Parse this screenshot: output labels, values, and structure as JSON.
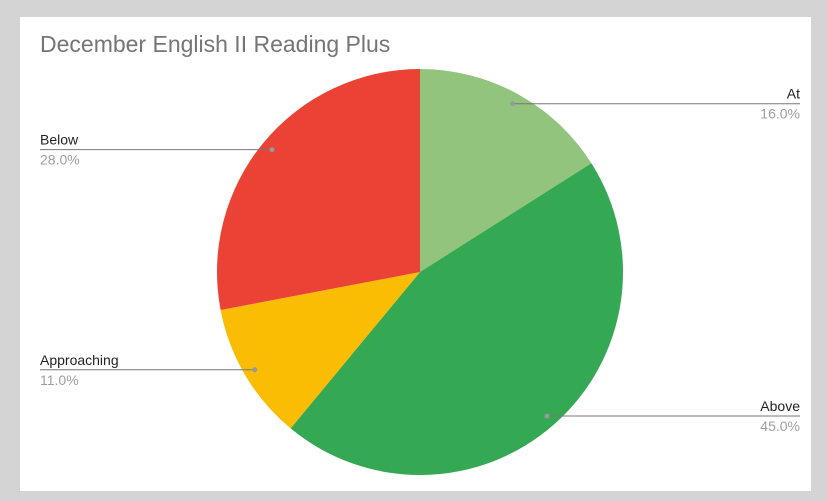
{
  "chart_data": {
    "type": "pie",
    "title": "December English II Reading Plus",
    "categories": [
      "At",
      "Above",
      "Approaching",
      "Below"
    ],
    "values": [
      16,
      45,
      11,
      28
    ],
    "value_labels": [
      "16.0%",
      "45.0%",
      "11.0%",
      "28.0%"
    ],
    "colors": [
      "#93c47d",
      "#34a853",
      "#fbbc04",
      "#ea4335"
    ]
  }
}
